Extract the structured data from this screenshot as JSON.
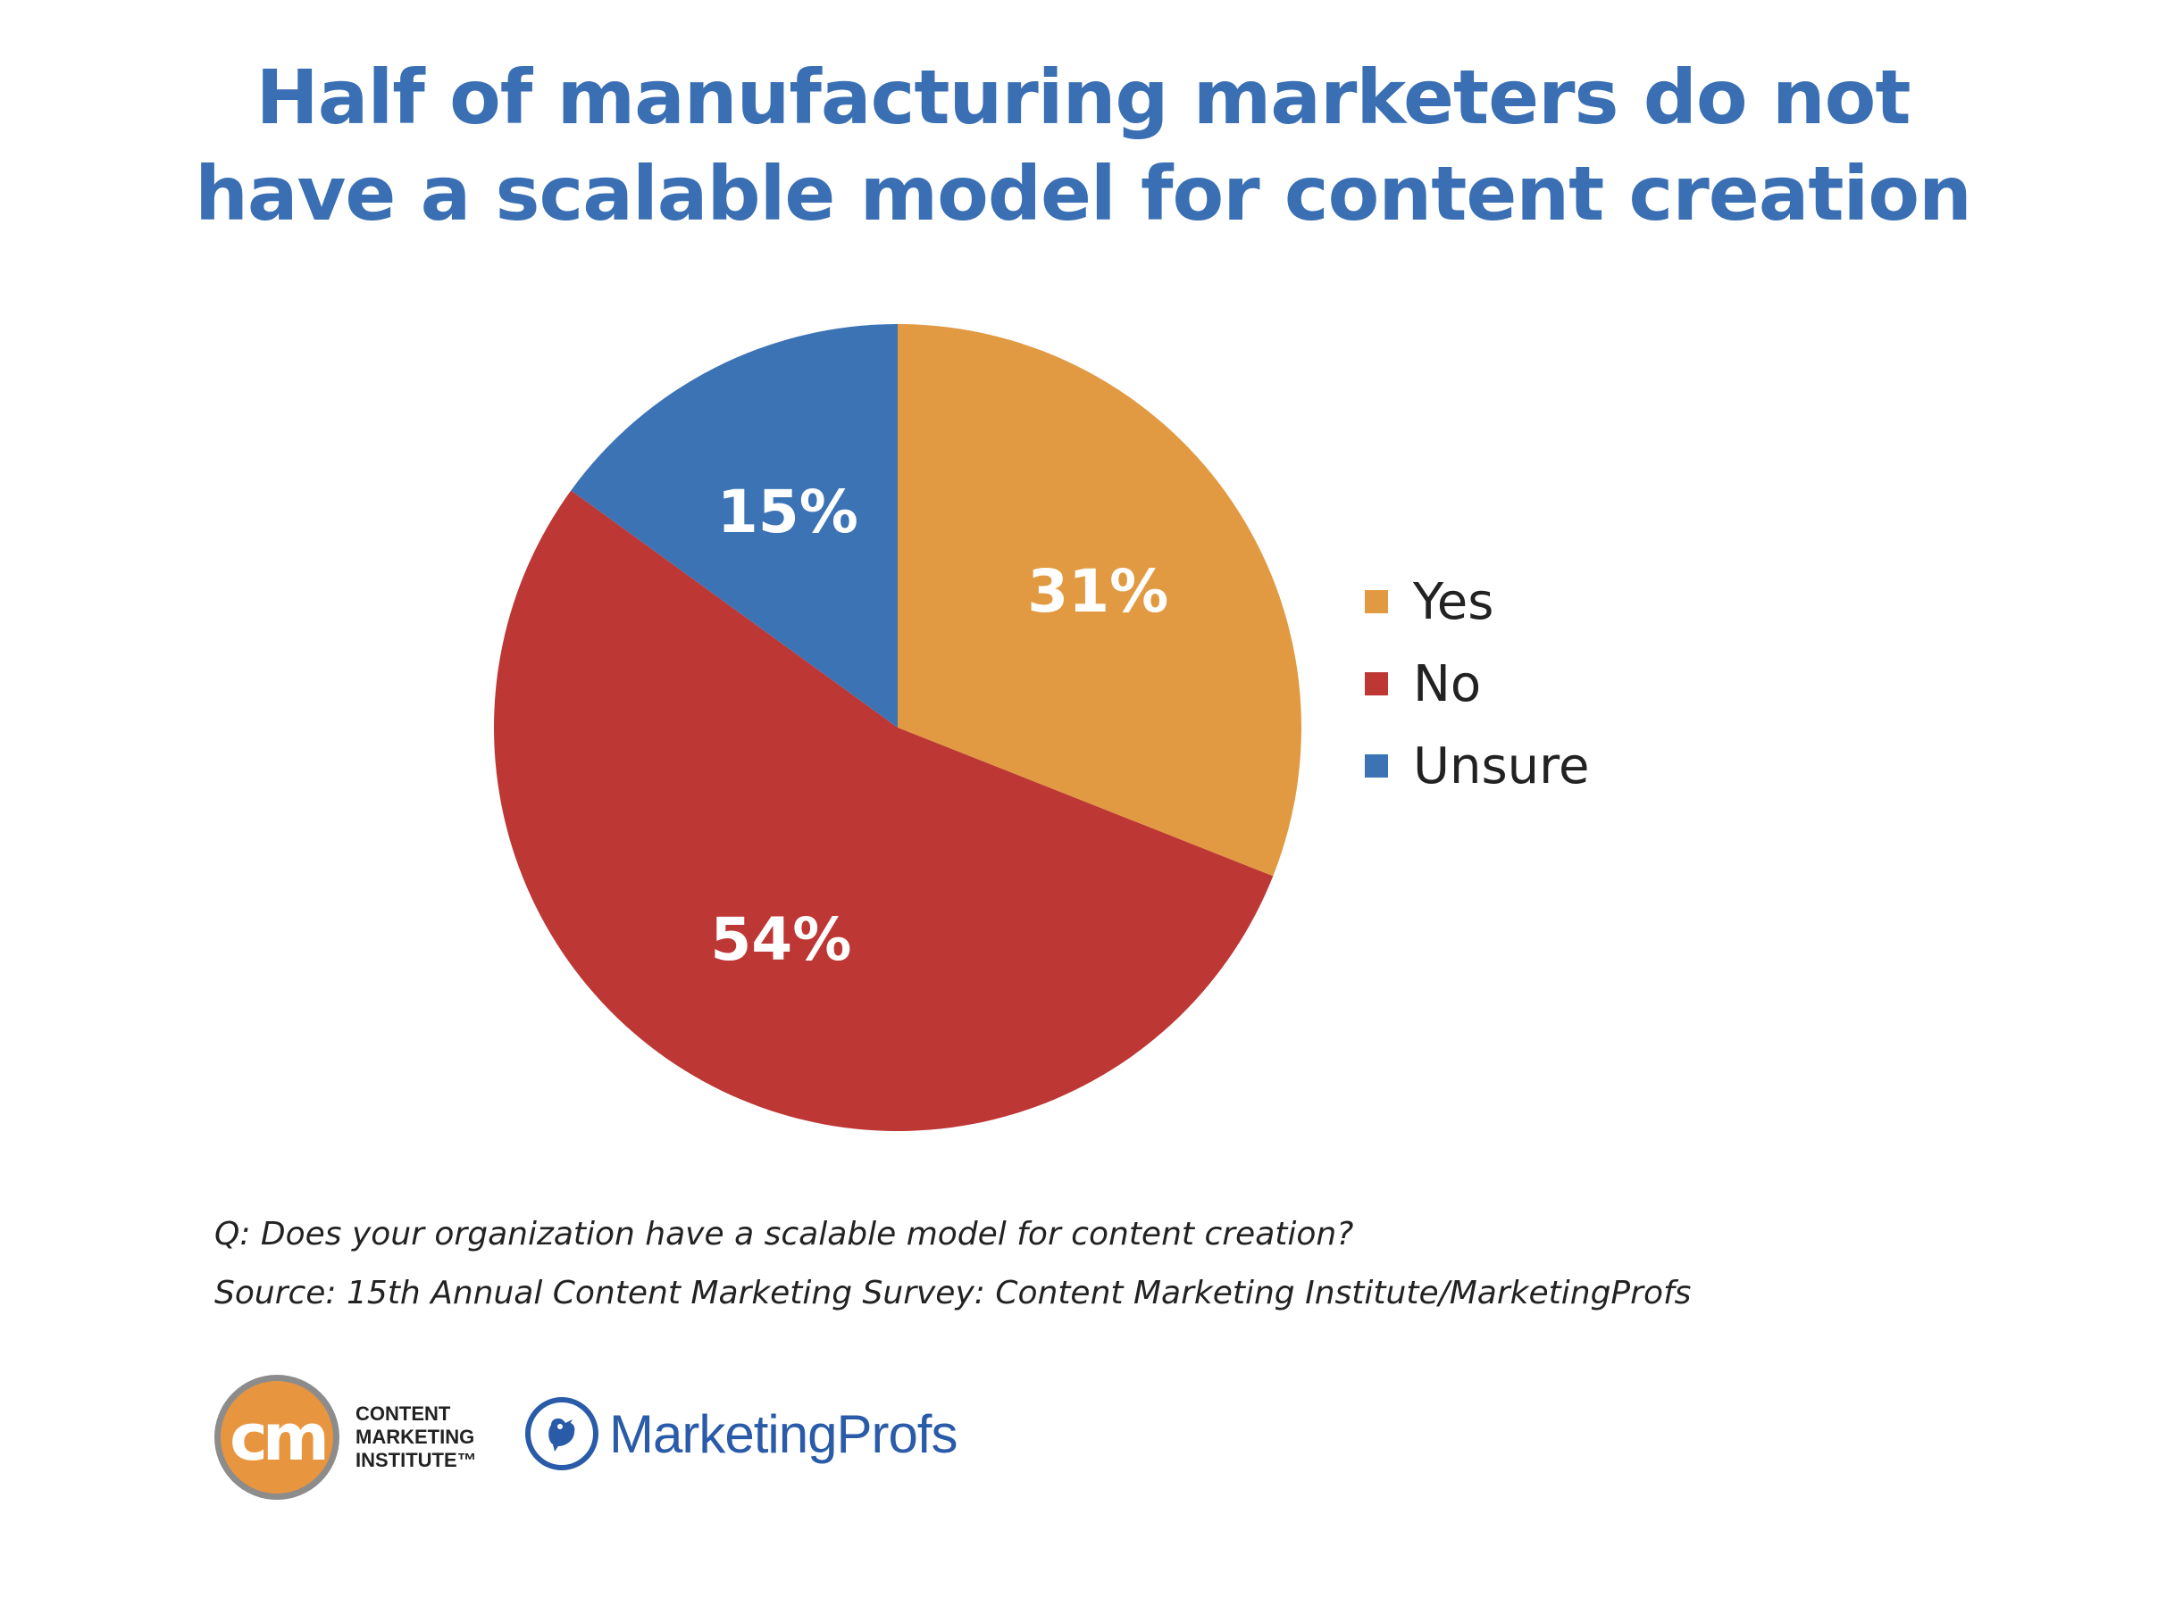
{
  "chart_data": {
    "type": "pie",
    "title": [
      "Half of manufacturing marketers do not",
      "have a scalable model for content creation"
    ],
    "slices": [
      {
        "label": "Yes",
        "value": 31,
        "display": "31%",
        "color": "#e29a42"
      },
      {
        "label": "No",
        "value": 54,
        "display": "54%",
        "color": "#bd3735"
      },
      {
        "label": "Unsure",
        "value": 15,
        "display": "15%",
        "color": "#3b73b5"
      }
    ],
    "legend_placement": "right",
    "start_angle": "12 o'clock",
    "direction": "clockwise"
  },
  "notes": {
    "question": "Q: Does your organization have a scalable model for content creation?",
    "source": "Source: 15th Annual Content Marketing Survey: Content Marketing Institute/MarketingProfs"
  },
  "logos": {
    "cmi": {
      "mark": "cm",
      "lines": [
        "CONTENT",
        "MARKETING",
        "INSTITUTE™"
      ],
      "color": "#e8953f"
    },
    "marketingprofs": {
      "icon": "bird-icon",
      "name": "MarketingProfs",
      "color": "#2a5ba8"
    }
  }
}
